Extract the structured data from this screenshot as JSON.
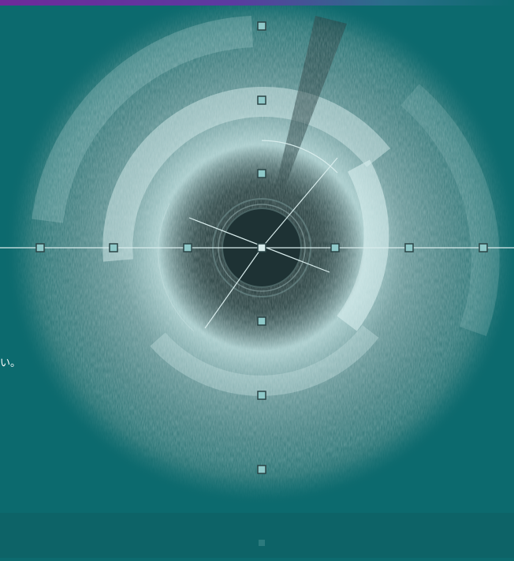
{
  "image": {
    "subject": "intravascular-ultrasound-cross-section",
    "colors": {
      "background": "#0c6a6e",
      "tissue": "#c8e2e2",
      "lumen": "#1e3234",
      "overlay_line": "#d8ecec",
      "marker_fill": "#8fc9c9",
      "marker_border": "#2a4446",
      "top_bar": "#6e2a9a"
    }
  },
  "caption_fragment": "い。",
  "markers": {
    "horizontal_count": 7,
    "vertical_count": 7
  }
}
